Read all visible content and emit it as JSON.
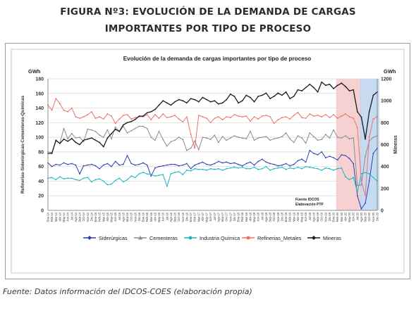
{
  "figure": {
    "caption_line1": "FIGURA Nº3: EVOLUCIÓN DE LA DEMANDA DE CARGAS",
    "caption_line2": "IMPORTANTES POR TIPO DE PROCESO"
  },
  "source": "Fuente: Datos información del IDCOS-COES (elaboración propia)",
  "chart_data": {
    "type": "line",
    "title": "Evolución de la demanda de cargas importantes por tipo de proceso",
    "left_unit": "GWh",
    "right_unit": "GWh",
    "ylabel": "Refinerias-Siderúrgicas-Cementeras-Químicas",
    "y2label": "Mineras",
    "ylim": [
      0,
      180
    ],
    "y2lim": [
      0,
      1200
    ],
    "yticks": [
      0,
      20,
      40,
      60,
      80,
      100,
      120,
      140,
      160,
      180
    ],
    "y2ticks": [
      0,
      200,
      400,
      600,
      800,
      1000,
      1200
    ],
    "x_start": "Ene-14",
    "x_end": "Dic-20",
    "n_points": 84,
    "grid": true,
    "legend_position": "bottom",
    "annotation": "Fuente IDCOS\nElaboración PTP",
    "x_tick_labels": [
      "Ene-14",
      "Feb-14",
      "Mar-14",
      "Abr-14",
      "May-14",
      "Jun-14",
      "Jul-14",
      "Ago-14",
      "Sep-14",
      "Oct-14",
      "Nov-14",
      "Dic-14",
      "Ene-15",
      "Feb-15",
      "Mar-15",
      "Abr-15",
      "May-15",
      "Jun-15",
      "Jul-15",
      "Ago-15",
      "Sep-15",
      "Oct-15",
      "Nov-15",
      "Dic-15",
      "Ene-16",
      "Feb-16",
      "Mar-16",
      "Abr-16",
      "May-16",
      "Jun-16",
      "Jul-16",
      "Ago-16",
      "Sep-16",
      "Oct-16",
      "Nov-16",
      "Dic-16",
      "Ene-17",
      "Feb-17",
      "Mar-17",
      "Abr-17",
      "May-17",
      "Jun-17",
      "Jul-17",
      "Ago-17",
      "Sep-17",
      "Oct-17",
      "Nov-17",
      "Dic-17",
      "Ene-18",
      "Feb-18",
      "Mar-18",
      "Abr-18",
      "May-18",
      "Jun-18",
      "Jul-18",
      "Ago-18",
      "Sep-18",
      "Oct-18",
      "Nov-18",
      "Dic-18",
      "Ene-19",
      "Feb-19",
      "Mar-19",
      "Abr-19",
      "May-19",
      "Jun-19",
      "Jul-19",
      "Ago-19",
      "Sep-19",
      "Oct-19",
      "Nov-19",
      "Dic-19",
      "Ene-20",
      "Feb-20",
      "Mar-20",
      "Abr-20",
      "May-20",
      "Jun-20",
      "Jul-20",
      "Ago-20",
      "Sep-20",
      "Oct-20",
      "Nov-20",
      "Dic-20"
    ],
    "highlight_regions": [
      {
        "from_index": 73,
        "to_index": 79,
        "color": "#f6c9c9"
      },
      {
        "from_index": 79,
        "to_index": 83,
        "color": "#bcd5ef"
      }
    ],
    "series": [
      {
        "name": "Siderúrgicas",
        "axis": "left",
        "color": "#2e3fb0",
        "marker": "diamond",
        "values": [
          65,
          60,
          63,
          62,
          65,
          63,
          64,
          62,
          50,
          61,
          62,
          63,
          61,
          57,
          62,
          64,
          60,
          67,
          62,
          63,
          75,
          64,
          62,
          63,
          65,
          62,
          47,
          58,
          60,
          61,
          62,
          63,
          63,
          61,
          62,
          64,
          57,
          62,
          64,
          66,
          63,
          62,
          64,
          67,
          65,
          66,
          64,
          65,
          63,
          61,
          64,
          66,
          62,
          67,
          70,
          66,
          64,
          63,
          61,
          62,
          64,
          61,
          63,
          68,
          70,
          66,
          82,
          78,
          76,
          80,
          72,
          74,
          72,
          69,
          76,
          75,
          71,
          64,
          20,
          2,
          10,
          40,
          78,
          85
        ]
      },
      {
        "name": "Cementeras",
        "axis": "left",
        "color": "#8c8c8c",
        "marker": "triangle",
        "values": [
          80,
          79,
          95,
          92,
          112,
          98,
          105,
          99,
          100,
          94,
          111,
          110,
          108,
          103,
          100,
          110,
          98,
          114,
          108,
          115,
          106,
          109,
          112,
          115,
          115,
          112,
          100,
          96,
          108,
          97,
          88,
          94,
          96,
          100,
          97,
          82,
          85,
          95,
          83,
          100,
          99,
          97,
          103,
          93,
          101,
          96,
          99,
          102,
          100,
          99,
          98,
          108,
          96,
          99,
          100,
          101,
          96,
          98,
          99,
          101,
          106,
          98,
          93,
          102,
          99,
          92,
          106,
          101,
          96,
          97,
          104,
          99,
          110,
          100,
          99,
          102,
          98,
          99,
          34,
          35,
          74,
          95,
          100,
          102
        ]
      },
      {
        "name": "Industria Química",
        "axis": "left",
        "color": "#18b8bc",
        "marker": "circle",
        "values": [
          44,
          45,
          42,
          46,
          43,
          44,
          44,
          42,
          41,
          44,
          45,
          39,
          42,
          43,
          40,
          35,
          36,
          41,
          44,
          39,
          42,
          47,
          45,
          50,
          52,
          50,
          49,
          47,
          48,
          49,
          33,
          50,
          52,
          53,
          49,
          55,
          54,
          57,
          56,
          56,
          55,
          57,
          56,
          57,
          55,
          57,
          58,
          59,
          58,
          59,
          57,
          57,
          59,
          56,
          57,
          60,
          55,
          57,
          58,
          59,
          56,
          58,
          57,
          59,
          57,
          60,
          59,
          58,
          57,
          55,
          58,
          57,
          55,
          57,
          58,
          46,
          42,
          45,
          25,
          50,
          52,
          50,
          45,
          40
        ]
      },
      {
        "name": "Refinerias_Metales",
        "axis": "left",
        "color": "#ef6f6f",
        "marker": "square",
        "values": [
          144,
          137,
          153,
          146,
          137,
          135,
          140,
          128,
          126,
          128,
          131,
          135,
          126,
          128,
          125,
          132,
          129,
          119,
          125,
          130,
          131,
          125,
          127,
          128,
          128,
          131,
          124,
          131,
          126,
          132,
          127,
          128,
          130,
          125,
          121,
          128,
          104,
          85,
          130,
          128,
          126,
          120,
          126,
          128,
          124,
          128,
          127,
          131,
          129,
          128,
          129,
          122,
          128,
          125,
          129,
          130,
          128,
          119,
          124,
          127,
          128,
          125,
          130,
          134,
          127,
          126,
          132,
          129,
          130,
          128,
          131,
          127,
          131,
          126,
          129,
          132,
          128,
          126,
          113,
          40,
          20,
          100,
          125,
          128
        ]
      },
      {
        "name": "Mineras",
        "axis": "right",
        "color": "#1b1b1b",
        "marker": "diamond",
        "values": [
          520,
          520,
          640,
          610,
          650,
          630,
          655,
          620,
          600,
          640,
          650,
          660,
          640,
          620,
          580,
          660,
          700,
          740,
          720,
          780,
          800,
          810,
          830,
          860,
          860,
          890,
          900,
          920,
          960,
          1000,
          980,
          960,
          990,
          1010,
          1000,
          980,
          1020,
          1010,
          990,
          1030,
          1010,
          990,
          1000,
          970,
          980,
          1010,
          1060,
          1040,
          980,
          1000,
          1050,
          1030,
          990,
          1040,
          1050,
          1070,
          1020,
          1040,
          1070,
          1050,
          1080,
          1020,
          1040,
          1100,
          1090,
          1120,
          1150,
          1120,
          1080,
          1170,
          1140,
          1150,
          1110,
          1140,
          1160,
          1130,
          1090,
          1100,
          900,
          850,
          650,
          900,
          1050,
          1080
        ]
      }
    ]
  }
}
